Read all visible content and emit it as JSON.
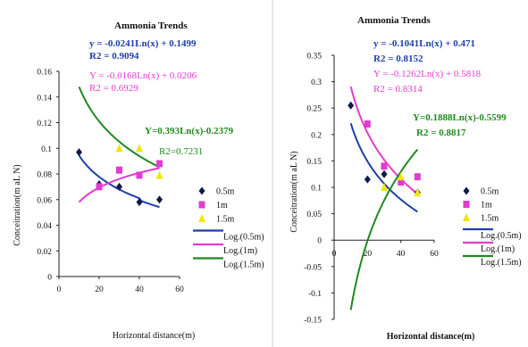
{
  "charts": [
    {
      "title": "Ammonia Trends",
      "ylabel": "Conceitration(m aL N)",
      "xlabel": "Horizontal distance(m)",
      "equations": [
        {
          "eq": "y = -0.0241Ln(x) + 0.1499",
          "r2_label": "R2 = 0.9094",
          "color": "#1f3fa8"
        },
        {
          "eq": "Y = -0.0168Ln(x) + 0.0206",
          "r2_label": "R2 = 0.6929",
          "color": "#e23ccf"
        },
        {
          "eq": "Y=0.393Ln(x)-0.2379",
          "r2_label": "R2=0.7231",
          "color": "#1f8a1f"
        }
      ],
      "legend": [
        "0.5m",
        "1m",
        "1.5m",
        "Log.(0.5m)",
        "Log.(1m)",
        "Log.(1.5m)"
      ]
    },
    {
      "title": "Ammonia Trends",
      "ylabel": "Conceitration(m aL N)",
      "xlabel": "Horizontal distance(m)",
      "equations": [
        {
          "eq": "y = -0.1041Ln(x) + 0.471",
          "r2_label": "R2 = 0.8152",
          "color": "#1f3fa8"
        },
        {
          "eq": "Y = -0.1262Ln(x) + 0.5818",
          "r2_label": "R2 = 0.8314",
          "color": "#e23ccf"
        },
        {
          "eq": "Y=0.1888Ln(x)-0.5599",
          "r2_label": "R2 = 0.8817",
          "color": "#1f8a1f"
        }
      ],
      "legend": [
        "0.5m",
        "1m",
        "1.5m",
        "Log.(0.5m)",
        "Log.(1m)",
        "Log.(1.5m)"
      ]
    }
  ],
  "chart_data": [
    {
      "type": "scatter",
      "title": "Ammonia Trends",
      "xlabel": "Horizontal distance(m)",
      "ylabel": "Conceitration(m aL N)",
      "xlim": [
        0,
        60
      ],
      "ylim": [
        0,
        0.16
      ],
      "xticks": [
        0,
        20,
        40,
        60
      ],
      "yticks": [
        0,
        0.02,
        0.04,
        0.06,
        0.08,
        0.1,
        0.12,
        0.14,
        0.16
      ],
      "series": [
        {
          "name": "0.5m",
          "marker": "diamond",
          "color": "#0d1b4a",
          "x": [
            10,
            20,
            30,
            40,
            50
          ],
          "y": [
            0.097,
            0.072,
            0.07,
            0.058,
            0.06
          ]
        },
        {
          "name": "1m",
          "marker": "square",
          "color": "#e23ccf",
          "x": [
            20,
            30,
            40,
            50
          ],
          "y": [
            0.07,
            0.083,
            0.079,
            0.088
          ]
        },
        {
          "name": "1.5m",
          "marker": "triangle",
          "color": "#f2e600",
          "x": [
            30,
            40,
            50
          ],
          "y": [
            0.1,
            0.1,
            0.079
          ]
        }
      ],
      "trendlines": [
        {
          "name": "Log.(0.5m)",
          "color": "#1f3fa8",
          "a": -0.0241,
          "b": 0.1499,
          "xrange": [
            10,
            50
          ]
        },
        {
          "name": "Log.(1m)",
          "color": "#e23ccf",
          "a": -0.0168,
          "b": 0.0206,
          "xrange": [
            10,
            50
          ],
          "note": "rendered curve rises toward 0.085"
        },
        {
          "name": "Log.(1.5m)",
          "color": "#1f8a1f",
          "a": 0.393,
          "b": -0.2379,
          "xrange": [
            10,
            50
          ],
          "note": "rendered curve falls from 0.148 to 0.085"
        }
      ],
      "legend_position": "right"
    },
    {
      "type": "scatter",
      "title": "Ammonia Trends",
      "xlabel": "Horizontal distance(m)",
      "ylabel": "Conceitration(m aL N)",
      "xlim": [
        0,
        60
      ],
      "ylim": [
        -0.15,
        0.35
      ],
      "xticks": [
        0,
        20,
        40,
        60
      ],
      "yticks": [
        -0.15,
        -0.1,
        -0.05,
        0,
        0.05,
        0.1,
        0.15,
        0.2,
        0.25,
        0.3,
        0.35
      ],
      "series": [
        {
          "name": "0.5m",
          "marker": "diamond",
          "color": "#0d1b4a",
          "x": [
            10,
            20,
            30,
            40,
            50
          ],
          "y": [
            0.255,
            0.115,
            0.125,
            0.115,
            0.09
          ]
        },
        {
          "name": "1m",
          "marker": "square",
          "color": "#e23ccf",
          "x": [
            20,
            30,
            40,
            50
          ],
          "y": [
            0.22,
            0.14,
            0.11,
            0.12
          ]
        },
        {
          "name": "1.5m",
          "marker": "triangle",
          "color": "#f2e600",
          "x": [
            30,
            40,
            50
          ],
          "y": [
            0.1,
            0.12,
            0.09
          ]
        }
      ],
      "trendlines": [
        {
          "name": "Log.(0.5m)",
          "color": "#1f3fa8",
          "a": -0.1041,
          "b": 0.471,
          "xrange": [
            10,
            50
          ]
        },
        {
          "name": "Log.(1m)",
          "color": "#e23ccf",
          "a": -0.1262,
          "b": 0.5818,
          "xrange": [
            10,
            50
          ]
        },
        {
          "name": "Log.(1.5m)",
          "color": "#1f8a1f",
          "a": 0.1888,
          "b": -0.5599,
          "xrange": [
            10,
            50
          ]
        }
      ],
      "legend_position": "right"
    }
  ]
}
